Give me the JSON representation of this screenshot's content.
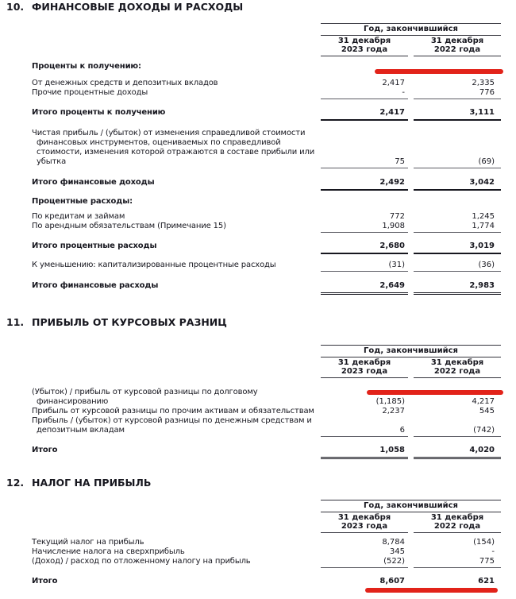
{
  "colors": {
    "text": "#17171f",
    "rule_light": "#5c5c64",
    "rule_dark": "#17171f",
    "annotation_marker": "#e2231a"
  },
  "sections": [
    {
      "number": "10.",
      "title": "ФИНАНСОВЫЕ ДОХОДЫ И РАСХОДЫ",
      "period": "Год, закончившийся",
      "col_2023": "31 декабря\n2023 года",
      "col_2022": "31 декабря\n2022 года",
      "rows": [
        {
          "label": "Проценты к получению:"
        },
        {
          "label": "От денежных средств и депозитных вкладов",
          "v1": "2,417",
          "v2": "2,335"
        },
        {
          "label": "Прочие процентные доходы",
          "v1": "-",
          "v2": "776"
        },
        {
          "label": "Итого проценты к получению",
          "v1": "2,417",
          "v2": "3,111"
        },
        {
          "label": "Чистая прибыль / (убыток) от изменения справедливой стоимости\nфинансовых инструментов, оцениваемых по справедливой\nстоимости, изменения которой отражаются в составе прибыли или\nубытка",
          "v1": "75",
          "v2": "(69)"
        },
        {
          "label": "Итого финансовые доходы",
          "v1": "2,492",
          "v2": "3,042"
        },
        {
          "label": "Процентные расходы:"
        },
        {
          "label": "По кредитам и займам",
          "v1": "772",
          "v2": "1,245"
        },
        {
          "label": "По арендным обязательствам (Примечание 15)",
          "v1": "1,908",
          "v2": "1,774"
        },
        {
          "label": "Итого процентные расходы",
          "v1": "2,680",
          "v2": "3,019"
        },
        {
          "label": "К уменьшению: капитализированные процентные расходы",
          "v1": "(31)",
          "v2": "(36)"
        },
        {
          "label": "Итого финансовые расходы",
          "v1": "2,649",
          "v2": "2,983"
        }
      ]
    },
    {
      "number": "11.",
      "title": "ПРИБЫЛЬ ОТ КУРСОВЫХ РАЗНИЦ",
      "period": "Год, закончившийся",
      "col_2023": "31 декабря\n2023 года",
      "col_2022": "31 декабря\n2022 года",
      "rows": [
        {
          "label": "(Убыток) / прибыль от курсовой разницы по долговому\nфинансированию",
          "v1": "(1,185)",
          "v2": "4,217"
        },
        {
          "label": "Прибыль от курсовой разницы по прочим активам и обязательствам",
          "v1": "2,237",
          "v2": "545"
        },
        {
          "label": "Прибыль / (убыток) от курсовой разницы по денежным средствам и\nдепозитным вкладам",
          "v1": "6",
          "v2": "(742)"
        },
        {
          "label": "Итого",
          "v1": "1,058",
          "v2": "4,020"
        }
      ]
    },
    {
      "number": "12.",
      "title": "НАЛОГ НА ПРИБЫЛЬ",
      "period": "Год, закончившийся",
      "col_2023": "31 декабря\n2023 года",
      "col_2022": "31 декабря\n2022 года",
      "rows": [
        {
          "label": "Текущий налог на прибыль",
          "v1": "8,784",
          "v2": "(154)"
        },
        {
          "label": "Начисление налога на сверхприбыль",
          "v1": "345",
          "v2": "-"
        },
        {
          "label": "(Доход) / расход по отложенному налогу на прибыль",
          "v1": "(522)",
          "v2": "775"
        },
        {
          "label": "Итого",
          "v1": "8,607",
          "v2": "621"
        }
      ]
    }
  ]
}
